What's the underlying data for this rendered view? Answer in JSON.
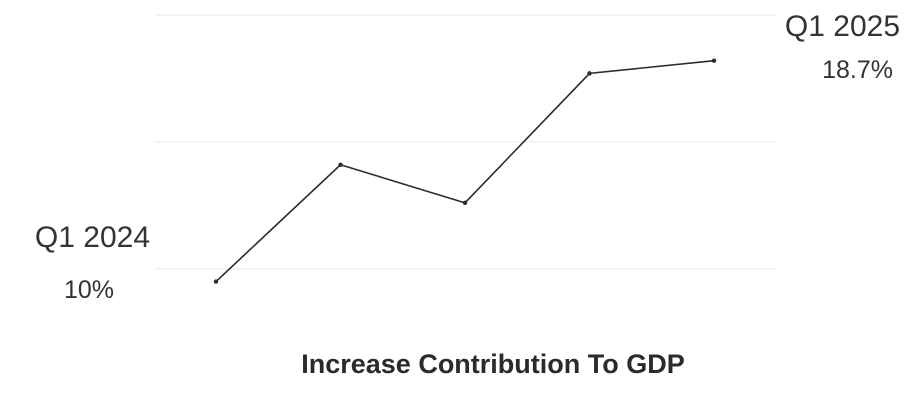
{
  "chart_data": {
    "type": "line",
    "title": "Increase Contribution To GDP",
    "xlabel": "",
    "ylabel": "",
    "grid": true,
    "values": [
      10,
      14.6,
      13.1,
      18.2,
      18.7
    ],
    "ylim": [
      7.5,
      20.5
    ],
    "gridlines": [
      10.5,
      15.5,
      20.5
    ],
    "start_label": {
      "period": "Q1 2024",
      "value": "10%"
    },
    "end_label": {
      "period": "Q1 2025",
      "value": "18.7%"
    }
  }
}
